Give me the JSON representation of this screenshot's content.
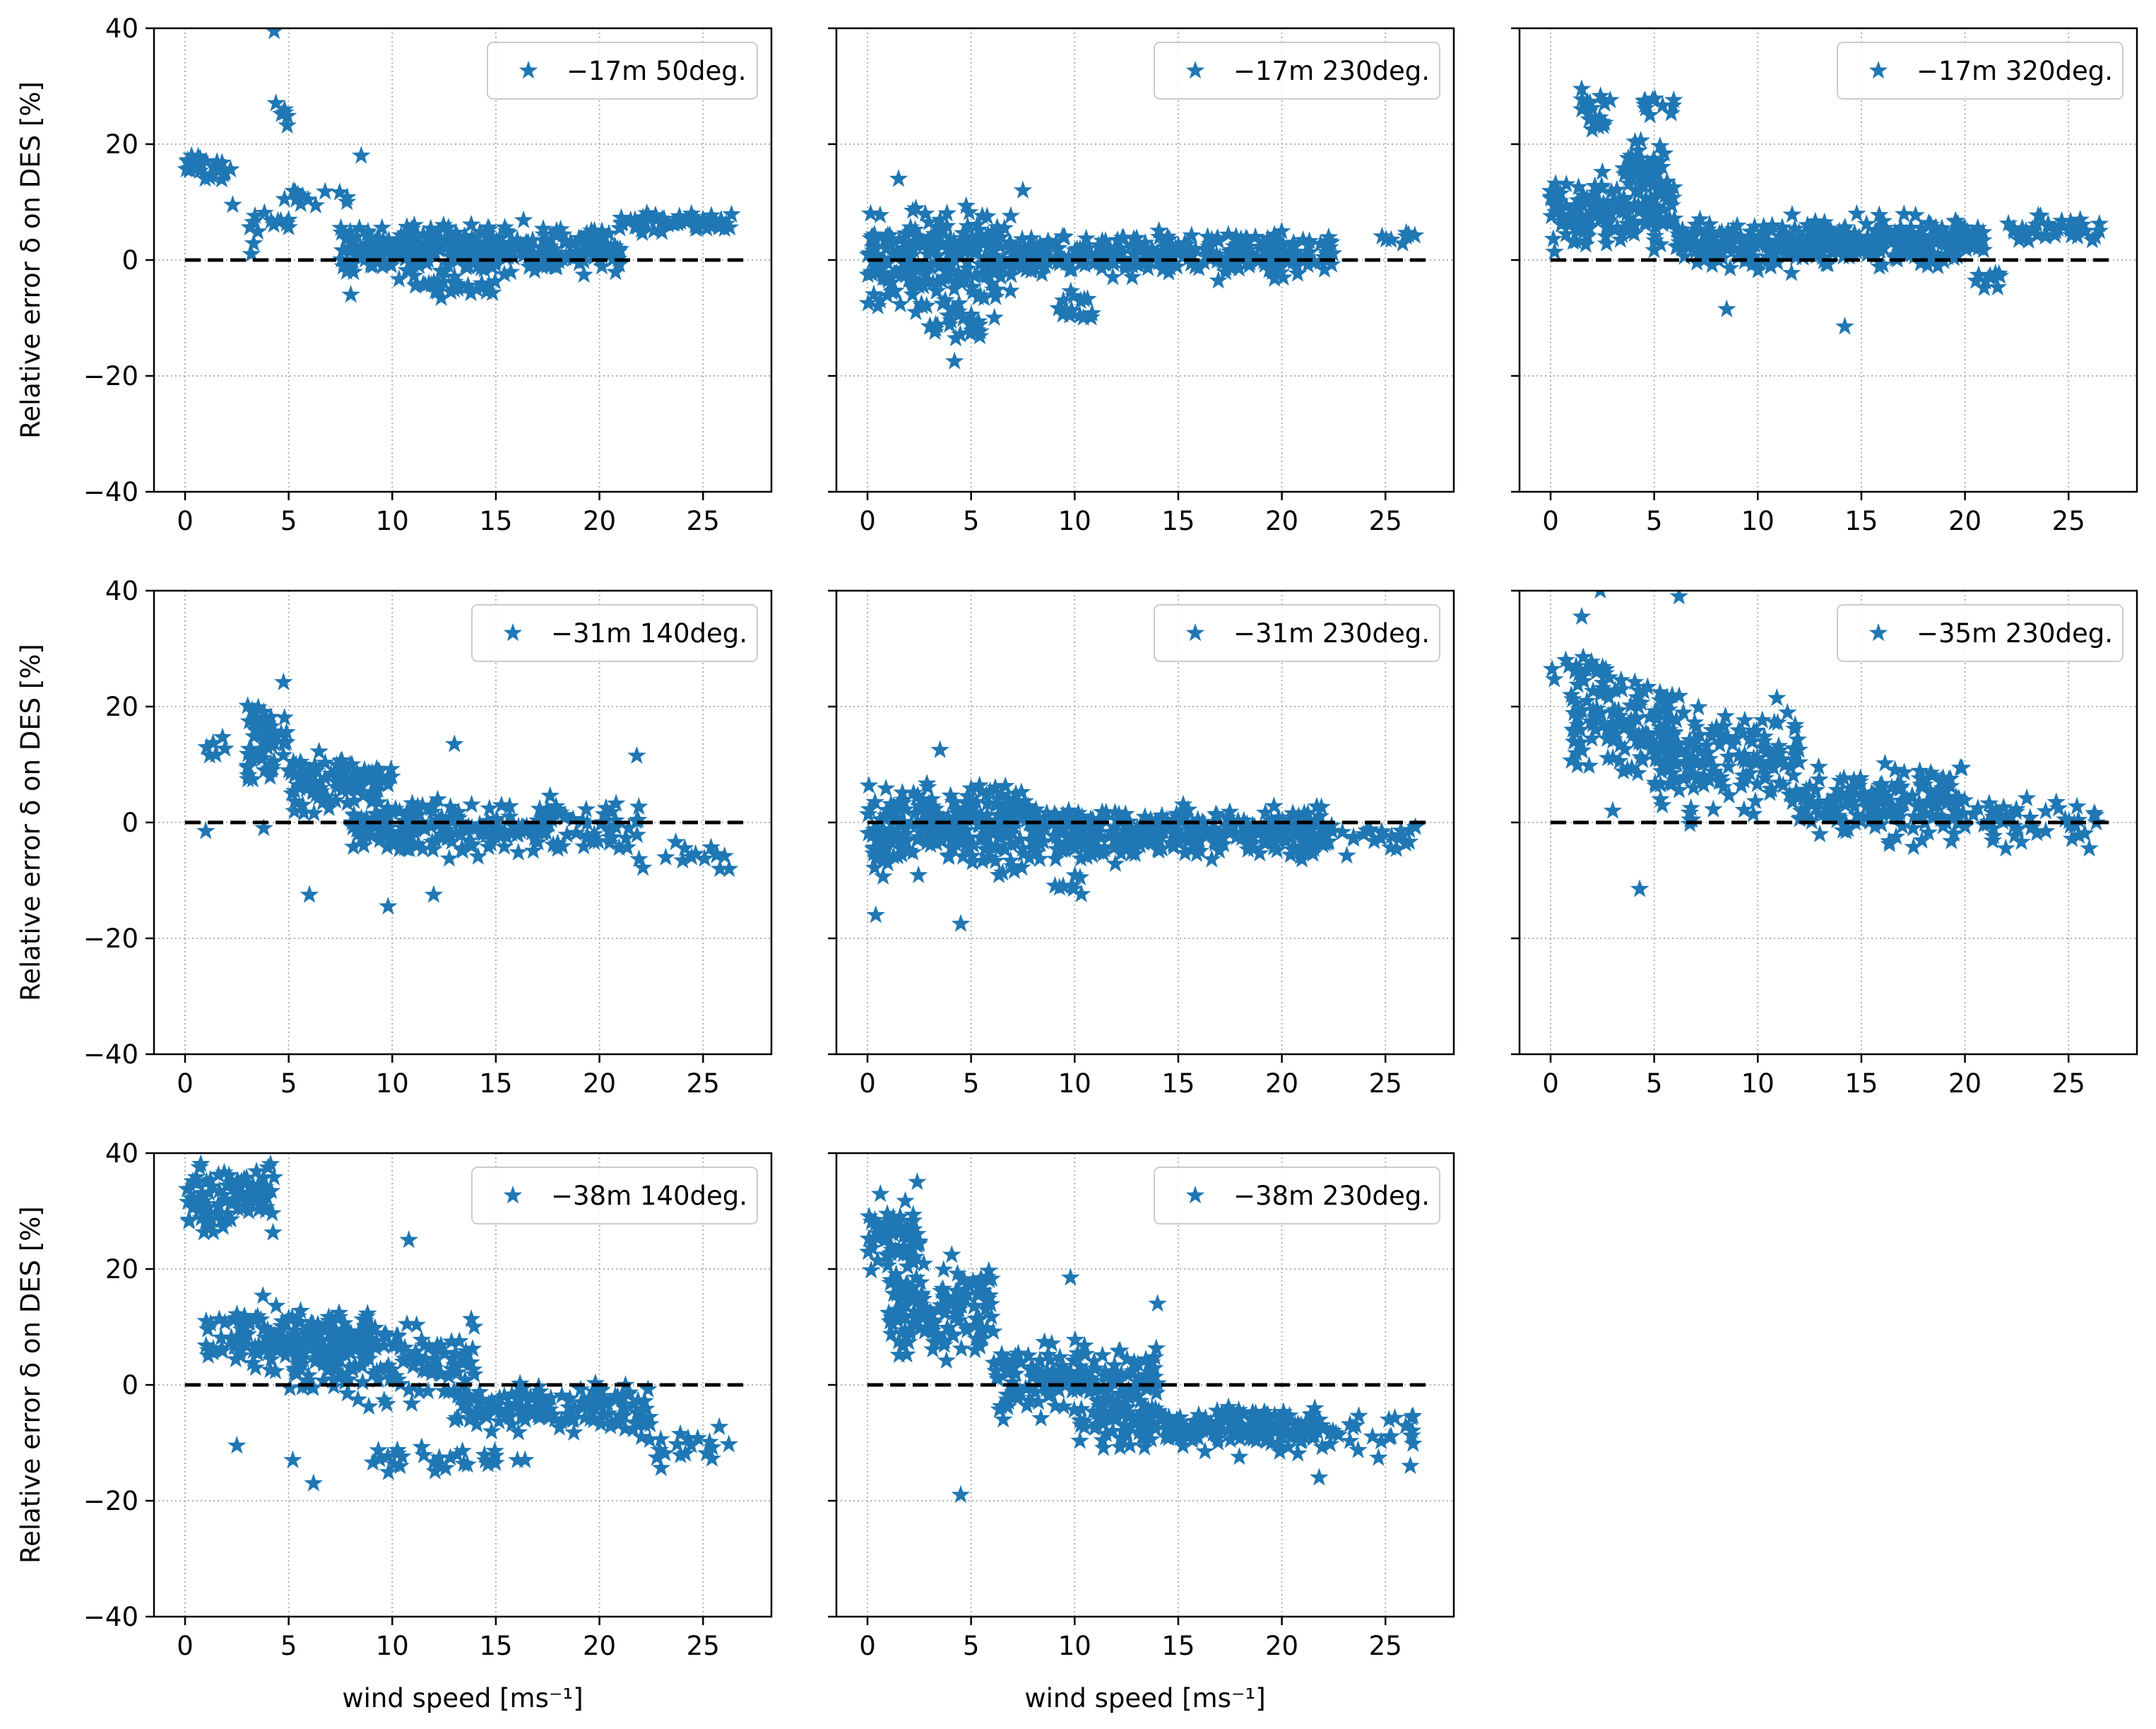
{
  "figure": {
    "y_axis_label": "Relative error δ on DES [%]",
    "x_axis_label": "wind speed [ms⁻¹]"
  },
  "chart_data": [
    {
      "type": "scatter",
      "marker": "star",
      "color": "#1f77b4",
      "reference_line": {
        "y": 0,
        "x_range": [
          0,
          27
        ],
        "style": "dashed",
        "color": "#000000"
      },
      "grid": true,
      "legend_position": "top-right",
      "xlim": [
        -1.5,
        28.3
      ],
      "ylim": [
        -40,
        40
      ],
      "xticks": [
        0,
        5,
        10,
        15,
        20,
        25
      ],
      "yticks": [
        -40,
        -20,
        0,
        20,
        40
      ],
      "show_ylabel": true,
      "show_xlabel": false,
      "show_yticklabels": true,
      "series": [
        {
          "name": "−17m 50deg.",
          "clusters": [
            {
              "x": [
                0,
                2.2
              ],
              "y": [
                12,
                20
              ],
              "n": 30
            },
            {
              "x": [
                3,
                5
              ],
              "y": [
                0,
                12
              ],
              "n": 14
            },
            {
              "x": [
                4,
                5
              ],
              "y": [
                22,
                28
              ],
              "n": 6
            },
            {
              "x": [
                5,
                8
              ],
              "y": [
                8,
                14
              ],
              "n": 12
            },
            {
              "x": [
                7.5,
                21
              ],
              "y": [
                -4,
                8
              ],
              "n": 340
            },
            {
              "x": [
                11,
                15
              ],
              "y": [
                -7,
                -2
              ],
              "n": 30
            },
            {
              "x": [
                21,
                26.5
              ],
              "y": [
                4,
                9
              ],
              "n": 60
            }
          ],
          "points": [
            [
              4.3,
              39.5
            ],
            [
              8.5,
              18
            ],
            [
              8,
              -6
            ],
            [
              2.3,
              9.5
            ],
            [
              3.2,
              1
            ]
          ]
        }
      ]
    },
    {
      "type": "scatter",
      "marker": "star",
      "color": "#1f77b4",
      "reference_line": {
        "y": 0,
        "x_range": [
          0,
          27
        ],
        "style": "dashed",
        "color": "#000000"
      },
      "grid": true,
      "legend_position": "top-right",
      "xlim": [
        -1.5,
        28.3
      ],
      "ylim": [
        -40,
        40
      ],
      "xticks": [
        0,
        5,
        10,
        15,
        20,
        25
      ],
      "yticks": [
        -40,
        -20,
        0,
        20,
        40
      ],
      "show_ylabel": false,
      "show_xlabel": false,
      "show_yticklabels": false,
      "series": [
        {
          "name": "−17m 230deg.",
          "clusters": [
            {
              "x": [
                0,
                7
              ],
              "y": [
                -12,
                12
              ],
              "n": 240
            },
            {
              "x": [
                3,
                5.5
              ],
              "y": [
                -16,
                -6
              ],
              "n": 25
            },
            {
              "x": [
                7,
                22.5
              ],
              "y": [
                -4,
                6
              ],
              "n": 320
            },
            {
              "x": [
                9,
                11
              ],
              "y": [
                -12,
                -4
              ],
              "n": 15
            },
            {
              "x": [
                24.5,
                26.5
              ],
              "y": [
                2,
                6
              ],
              "n": 8
            }
          ],
          "points": [
            [
              4.2,
              -17.5
            ],
            [
              1.5,
              14
            ],
            [
              7.5,
              12
            ],
            [
              0.5,
              -8
            ]
          ]
        }
      ]
    },
    {
      "type": "scatter",
      "marker": "star",
      "color": "#1f77b4",
      "reference_line": {
        "y": 0,
        "x_range": [
          0,
          27
        ],
        "style": "dashed",
        "color": "#000000"
      },
      "grid": true,
      "legend_position": "top-right",
      "xlim": [
        -1.5,
        28.3
      ],
      "ylim": [
        -40,
        40
      ],
      "xticks": [
        0,
        5,
        10,
        15,
        20,
        25
      ],
      "yticks": [
        -40,
        -20,
        0,
        20,
        40
      ],
      "show_ylabel": false,
      "show_xlabel": false,
      "show_yticklabels": false,
      "series": [
        {
          "name": "−17m 320deg.",
          "clusters": [
            {
              "x": [
                0,
                6
              ],
              "y": [
                0,
                16
              ],
              "n": 150
            },
            {
              "x": [
                3.5,
                5.5
              ],
              "y": [
                10,
                22
              ],
              "n": 40
            },
            {
              "x": [
                1.5,
                3
              ],
              "y": [
                20,
                31
              ],
              "n": 20
            },
            {
              "x": [
                4.5,
                6
              ],
              "y": [
                24,
                30
              ],
              "n": 10
            },
            {
              "x": [
                6,
                21
              ],
              "y": [
                -3,
                9
              ],
              "n": 360
            },
            {
              "x": [
                20.5,
                22
              ],
              "y": [
                -6,
                -1
              ],
              "n": 10
            },
            {
              "x": [
                22,
                26.5
              ],
              "y": [
                3,
                8
              ],
              "n": 40
            }
          ],
          "points": [
            [
              14.2,
              -11.5
            ],
            [
              8.5,
              -8.5
            ],
            [
              1.5,
              29.5
            ],
            [
              4.8,
              25
            ]
          ]
        }
      ]
    },
    {
      "type": "scatter",
      "marker": "star",
      "color": "#1f77b4",
      "reference_line": {
        "y": 0,
        "x_range": [
          0,
          27
        ],
        "style": "dashed",
        "color": "#000000"
      },
      "grid": true,
      "legend_position": "top-right",
      "xlim": [
        -1.5,
        28.3
      ],
      "ylim": [
        -40,
        40
      ],
      "xticks": [
        0,
        5,
        10,
        15,
        20,
        25
      ],
      "yticks": [
        -40,
        -20,
        0,
        20,
        40
      ],
      "show_ylabel": true,
      "show_xlabel": false,
      "show_yticklabels": true,
      "series": [
        {
          "name": "−31m 140deg.",
          "clusters": [
            {
              "x": [
                1,
                2
              ],
              "y": [
                10,
                17
              ],
              "n": 6
            },
            {
              "x": [
                3,
                5
              ],
              "y": [
                4,
                26
              ],
              "n": 60
            },
            {
              "x": [
                5,
                10
              ],
              "y": [
                0,
                14
              ],
              "n": 110
            },
            {
              "x": [
                8,
                18
              ],
              "y": [
                -8,
                6
              ],
              "n": 200
            },
            {
              "x": [
                18,
                22
              ],
              "y": [
                -8,
                6
              ],
              "n": 40
            },
            {
              "x": [
                22,
                26.5
              ],
              "y": [
                -10,
                -2
              ],
              "n": 14
            }
          ],
          "points": [
            [
              6,
              -12.5
            ],
            [
              9.8,
              -14.5
            ],
            [
              12,
              -12.5
            ],
            [
              13,
              13.5
            ],
            [
              21.8,
              11.5
            ],
            [
              1,
              -1.5
            ],
            [
              3.8,
              -1
            ]
          ]
        }
      ]
    },
    {
      "type": "scatter",
      "marker": "star",
      "color": "#1f77b4",
      "reference_line": {
        "y": 0,
        "x_range": [
          0,
          27
        ],
        "style": "dashed",
        "color": "#000000"
      },
      "grid": true,
      "legend_position": "top-right",
      "xlim": [
        -1.5,
        28.3
      ],
      "ylim": [
        -40,
        40
      ],
      "xticks": [
        0,
        5,
        10,
        15,
        20,
        25
      ],
      "yticks": [
        -40,
        -20,
        0,
        20,
        40
      ],
      "show_ylabel": false,
      "show_xlabel": false,
      "show_yticklabels": false,
      "series": [
        {
          "name": "−31m 230deg.",
          "clusters": [
            {
              "x": [
                0,
                8
              ],
              "y": [
                -12,
                10
              ],
              "n": 260
            },
            {
              "x": [
                8,
                22
              ],
              "y": [
                -8,
                4
              ],
              "n": 340
            },
            {
              "x": [
                22,
                26.5
              ],
              "y": [
                -6,
                2
              ],
              "n": 30
            },
            {
              "x": [
                9,
                10.5
              ],
              "y": [
                -14,
                -8
              ],
              "n": 8
            }
          ],
          "points": [
            [
              0.4,
              -16
            ],
            [
              4.5,
              -17.5
            ],
            [
              3.5,
              12.5
            ]
          ]
        }
      ]
    },
    {
      "type": "scatter",
      "marker": "star",
      "color": "#1f77b4",
      "reference_line": {
        "y": 0,
        "x_range": [
          0,
          27
        ],
        "style": "dashed",
        "color": "#000000"
      },
      "grid": true,
      "legend_position": "top-right",
      "xlim": [
        -1.5,
        28.3
      ],
      "ylim": [
        -40,
        40
      ],
      "xticks": [
        0,
        5,
        10,
        15,
        20,
        25
      ],
      "yticks": [
        -40,
        -20,
        0,
        20,
        40
      ],
      "show_ylabel": false,
      "show_xlabel": false,
      "show_yticklabels": false,
      "series": [
        {
          "name": "−35m 230deg.",
          "clusters": [
            {
              "x": [
                0,
                3
              ],
              "y": [
                20,
                30
              ],
              "n": 20
            },
            {
              "x": [
                1,
                6
              ],
              "y": [
                4,
                30
              ],
              "n": 120
            },
            {
              "x": [
                5,
                12
              ],
              "y": [
                -2,
                24
              ],
              "n": 170
            },
            {
              "x": [
                12,
                20
              ],
              "y": [
                -6,
                12
              ],
              "n": 170
            },
            {
              "x": [
                20,
                26.5
              ],
              "y": [
                -6,
                6
              ],
              "n": 50
            }
          ],
          "points": [
            [
              2.4,
              40
            ],
            [
              6.2,
              39
            ],
            [
              4.3,
              -11.5
            ],
            [
              1.5,
              35.5
            ],
            [
              26,
              -4.5
            ],
            [
              3,
              2
            ]
          ]
        }
      ]
    },
    {
      "type": "scatter",
      "marker": "star",
      "color": "#1f77b4",
      "reference_line": {
        "y": 0,
        "x_range": [
          0,
          27
        ],
        "style": "dashed",
        "color": "#000000"
      },
      "grid": true,
      "legend_position": "top-right",
      "xlim": [
        -1.5,
        28.3
      ],
      "ylim": [
        -40,
        40
      ],
      "xticks": [
        0,
        5,
        10,
        15,
        20,
        25
      ],
      "yticks": [
        -40,
        -20,
        0,
        20,
        40
      ],
      "show_ylabel": true,
      "show_xlabel": true,
      "show_yticklabels": true,
      "series": [
        {
          "name": "−38m 140deg.",
          "clusters": [
            {
              "x": [
                0,
                4.5
              ],
              "y": [
                24,
                40
              ],
              "n": 90
            },
            {
              "x": [
                1,
                9
              ],
              "y": [
                0,
                16
              ],
              "n": 170
            },
            {
              "x": [
                5,
                14
              ],
              "y": [
                -6,
                14
              ],
              "n": 160
            },
            {
              "x": [
                9,
                17
              ],
              "y": [
                -16,
                -10
              ],
              "n": 30
            },
            {
              "x": [
                13,
                22.5
              ],
              "y": [
                -10,
                2
              ],
              "n": 150
            },
            {
              "x": [
                22,
                26.5
              ],
              "y": [
                -16,
                -6
              ],
              "n": 20
            }
          ],
          "points": [
            [
              2.5,
              -10.5
            ],
            [
              6.2,
              -17
            ],
            [
              10.8,
              25
            ],
            [
              5.2,
              -13
            ],
            [
              4,
              37.5
            ]
          ]
        }
      ]
    },
    {
      "type": "scatter",
      "marker": "star",
      "color": "#1f77b4",
      "reference_line": {
        "y": 0,
        "x_range": [
          0,
          27
        ],
        "style": "dashed",
        "color": "#000000"
      },
      "grid": true,
      "legend_position": "top-right",
      "xlim": [
        -1.5,
        28.3
      ],
      "ylim": [
        -40,
        40
      ],
      "xticks": [
        0,
        5,
        10,
        15,
        20,
        25
      ],
      "yticks": [
        -40,
        -20,
        0,
        20,
        40
      ],
      "show_ylabel": false,
      "show_xlabel": true,
      "show_yticklabels": false,
      "series": [
        {
          "name": "−38m 230deg.",
          "clusters": [
            {
              "x": [
                0,
                2.5
              ],
              "y": [
                18,
                34
              ],
              "n": 70
            },
            {
              "x": [
                1,
                6
              ],
              "y": [
                2,
                24
              ],
              "n": 150
            },
            {
              "x": [
                6,
                14
              ],
              "y": [
                -8,
                10
              ],
              "n": 180
            },
            {
              "x": [
                10,
                22
              ],
              "y": [
                -13,
                -2
              ],
              "n": 240
            },
            {
              "x": [
                22,
                26.5
              ],
              "y": [
                -14,
                -3
              ],
              "n": 25
            }
          ],
          "points": [
            [
              4.5,
              -19
            ],
            [
              9.8,
              18.5
            ],
            [
              14,
              14
            ],
            [
              21.8,
              -16
            ],
            [
              26.2,
              -14
            ],
            [
              2.4,
              35
            ]
          ]
        }
      ]
    }
  ]
}
